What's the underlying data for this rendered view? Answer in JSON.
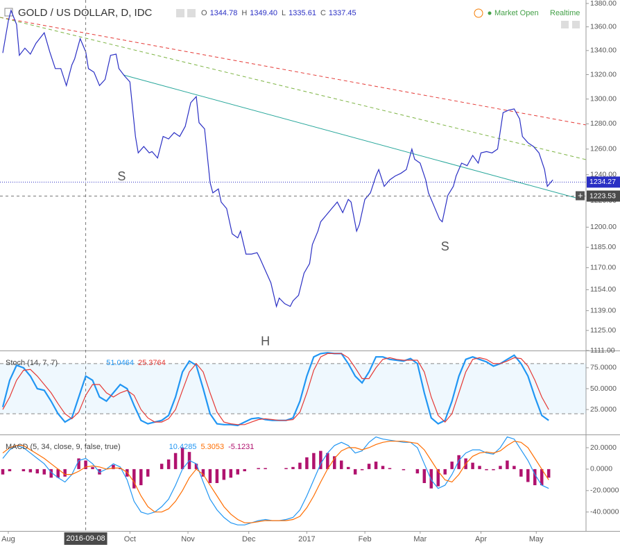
{
  "header": {
    "title": "GOLD / US DOLLAR, D, IDC",
    "ohlc": [
      [
        "O",
        "1344.78"
      ],
      [
        "H",
        "1349.40"
      ],
      [
        "L",
        "1335.61"
      ],
      [
        "C",
        "1337.45"
      ]
    ],
    "status": "Market Open",
    "realtime": "Realtime"
  },
  "chart_data": [
    {
      "type": "line",
      "log": true,
      "xlim": [
        -1,
        211
      ],
      "ylim": [
        1111,
        1380
      ],
      "yticks": [
        {
          "value": 1380,
          "label": "1380.00"
        },
        {
          "value": 1360,
          "label": "1360.00"
        },
        {
          "value": 1340,
          "label": "1340.00"
        },
        {
          "value": 1320,
          "label": "1320.00"
        },
        {
          "value": 1300,
          "label": "1300.00"
        },
        {
          "value": 1280,
          "label": "1280.00"
        },
        {
          "value": 1260,
          "label": "1260.00"
        },
        {
          "value": 1240,
          "label": "1240.00"
        },
        {
          "value": 1220,
          "label": "1220.00"
        },
        {
          "value": 1200,
          "label": "1200.00"
        },
        {
          "value": 1185,
          "label": "1185.00"
        },
        {
          "value": 1170,
          "label": "1170.00"
        },
        {
          "value": 1154,
          "label": "1154.00"
        },
        {
          "value": 1139,
          "label": "1139.00"
        },
        {
          "value": 1125,
          "label": "1125.00"
        },
        {
          "value": 1111,
          "label": "1111.00"
        }
      ],
      "xticks": [
        {
          "value": 2,
          "label": "Aug"
        },
        {
          "value": 46,
          "label": "Oct"
        },
        {
          "value": 67,
          "label": "Nov"
        },
        {
          "value": 89,
          "label": "Dec"
        },
        {
          "value": 110,
          "label": "2017"
        },
        {
          "value": 131,
          "label": "Feb"
        },
        {
          "value": 151,
          "label": "Mar"
        },
        {
          "value": 173,
          "label": "Apr"
        },
        {
          "value": 193,
          "label": "May"
        }
      ],
      "x": [
        0,
        2,
        3,
        5,
        6,
        8,
        10,
        12,
        14,
        15,
        17,
        19,
        21,
        23,
        25,
        26,
        28,
        30,
        31,
        33,
        35,
        37,
        39,
        41,
        42,
        44,
        46,
        48,
        49,
        51,
        53,
        54,
        56,
        58,
        60,
        62,
        64,
        66,
        68,
        70,
        71,
        73,
        75,
        76,
        78,
        79,
        81,
        83,
        85,
        86,
        88,
        90,
        92,
        93,
        95,
        97,
        99,
        100,
        102,
        104,
        105,
        107,
        109,
        111,
        112,
        114,
        115,
        117,
        119,
        121,
        123,
        125,
        126,
        128,
        129,
        131,
        133,
        135,
        136,
        138,
        140,
        142,
        144,
        146,
        148,
        149,
        151,
        153,
        154,
        156,
        158,
        159,
        161,
        163,
        164,
        166,
        168,
        170,
        172,
        173,
        175,
        177,
        179,
        181,
        183,
        185,
        187,
        188,
        190,
        192,
        194,
        196,
        197,
        199
      ],
      "series": [
        {
          "color": "#2a2fc4",
          "values": [
            1338,
            1365,
            1374,
            1362,
            1336,
            1342,
            1337,
            1346,
            1352,
            1355,
            1339,
            1325,
            1325,
            1311,
            1328,
            1333,
            1350,
            1339,
            1325,
            1322,
            1311,
            1316,
            1336,
            1337,
            1325,
            1319,
            1314,
            1270,
            1257,
            1262,
            1257,
            1258,
            1253,
            1270,
            1268,
            1273,
            1270,
            1278,
            1297,
            1302,
            1281,
            1276,
            1234,
            1226,
            1229,
            1219,
            1214,
            1195,
            1192,
            1197,
            1180,
            1180,
            1181,
            1177,
            1168,
            1159,
            1142,
            1148,
            1144,
            1142,
            1146,
            1150,
            1166,
            1173,
            1187,
            1197,
            1204,
            1209,
            1214,
            1219,
            1211,
            1221,
            1219,
            1197,
            1202,
            1221,
            1226,
            1239,
            1244,
            1231,
            1236,
            1239,
            1241,
            1244,
            1260,
            1252,
            1249,
            1236,
            1226,
            1216,
            1206,
            1204,
            1224,
            1231,
            1239,
            1249,
            1247,
            1255,
            1249,
            1257,
            1258,
            1257,
            1260,
            1289,
            1291,
            1292,
            1284,
            1270,
            1265,
            1262,
            1257,
            1244,
            1231,
            1236
          ]
        }
      ],
      "last_price": 1234.27,
      "crosshair": {
        "x": 30,
        "label": "2016-09-08",
        "price": 1223.53
      },
      "annotations": [
        {
          "text": "S",
          "x": 43,
          "y": 1238
        },
        {
          "text": "H",
          "x": 95,
          "y": 1117
        },
        {
          "text": "S",
          "x": 160,
          "y": 1185
        }
      ]
    },
    {
      "type": "line",
      "title": "Stoch (14, 7, 7)",
      "xlim": [
        -1,
        211
      ],
      "ylim": [
        -4,
        94
      ],
      "yticks": [
        {
          "value": 75,
          "label": "75.0000"
        },
        {
          "value": 50,
          "label": "50.0000"
        },
        {
          "value": 25,
          "label": "25.0000"
        }
      ],
      "bands": [
        20,
        80
      ],
      "legend_values": [
        "51.0464",
        "25.3764"
      ],
      "x": [
        0,
        2.5,
        5,
        7.5,
        10,
        12.5,
        15,
        17.5,
        20,
        22.5,
        25,
        27.5,
        30,
        32.5,
        35,
        37.5,
        40,
        42.5,
        45,
        47.5,
        50,
        52.5,
        55,
        57.5,
        60,
        62.5,
        65,
        67.5,
        70,
        72.5,
        75,
        77.5,
        80,
        82.5,
        85,
        87.5,
        90,
        92.5,
        95,
        97.5,
        100,
        102.5,
        105,
        107.5,
        110,
        112.5,
        115,
        117.5,
        120,
        122.5,
        125,
        127.5,
        130,
        132.5,
        135,
        137.5,
        140,
        142.5,
        145,
        147.5,
        150,
        152.5,
        155,
        157.5,
        160,
        162.5,
        165,
        167.5,
        170,
        172.5,
        175,
        177.5,
        180,
        182.5,
        185,
        187.5,
        190,
        192.5,
        195,
        197.5
      ],
      "series": [
        {
          "color": "#2196f3",
          "values": [
            28,
            60,
            78,
            75,
            65,
            50,
            48,
            35,
            20,
            10,
            15,
            40,
            65,
            60,
            40,
            35,
            45,
            55,
            50,
            30,
            12,
            8,
            10,
            12,
            18,
            40,
            70,
            83,
            78,
            50,
            20,
            8,
            7,
            7,
            6,
            10,
            14,
            15,
            13,
            12,
            12,
            12,
            15,
            35,
            65,
            88,
            92,
            93,
            92,
            92,
            80,
            65,
            57,
            70,
            88,
            88,
            85,
            84,
            83,
            86,
            80,
            45,
            15,
            8,
            12,
            35,
            65,
            85,
            88,
            85,
            82,
            77,
            80,
            85,
            90,
            80,
            65,
            40,
            18,
            12
          ]
        },
        {
          "color": "#e53935",
          "values": [
            25,
            40,
            60,
            72,
            73,
            65,
            55,
            45,
            32,
            20,
            14,
            22,
            42,
            55,
            55,
            45,
            40,
            45,
            48,
            42,
            25,
            15,
            10,
            10,
            14,
            25,
            48,
            70,
            80,
            70,
            45,
            22,
            10,
            8,
            7,
            7,
            10,
            13,
            14,
            13,
            12,
            12,
            13,
            22,
            45,
            72,
            88,
            92,
            92,
            92,
            87,
            75,
            62,
            62,
            75,
            85,
            87,
            85,
            84,
            84,
            84,
            70,
            40,
            18,
            10,
            20,
            45,
            70,
            85,
            87,
            85,
            80,
            80,
            83,
            87,
            86,
            77,
            60,
            40,
            25
          ]
        }
      ]
    },
    {
      "type": "line",
      "title": "MACD (5, 34, close, 9, false, true)",
      "xlim": [
        -1,
        211
      ],
      "ylim": [
        -57,
        31
      ],
      "yticks": [
        {
          "value": 20,
          "label": "20.0000"
        },
        {
          "value": 0,
          "label": "0.0000"
        },
        {
          "value": -20,
          "label": "-20.0000"
        },
        {
          "value": -40,
          "label": "-40.0000"
        }
      ],
      "legend_values": [
        "10.4285",
        "5.3053",
        "-5.1231"
      ],
      "x": [
        0,
        2.5,
        5,
        7.5,
        10,
        12.5,
        15,
        17.5,
        20,
        22.5,
        25,
        27.5,
        30,
        32.5,
        35,
        37.5,
        40,
        42.5,
        45,
        47.5,
        50,
        52.5,
        55,
        57.5,
        60,
        62.5,
        65,
        67.5,
        70,
        72.5,
        75,
        77.5,
        80,
        82.5,
        85,
        87.5,
        90,
        92.5,
        95,
        97.5,
        100,
        102.5,
        105,
        107.5,
        110,
        112.5,
        115,
        117.5,
        120,
        122.5,
        125,
        127.5,
        130,
        132.5,
        135,
        137.5,
        140,
        142.5,
        145,
        147.5,
        150,
        152.5,
        155,
        157.5,
        160,
        162.5,
        165,
        167.5,
        170,
        172.5,
        175,
        177.5,
        180,
        182.5,
        185,
        187.5,
        190,
        192.5,
        195,
        197.5
      ],
      "series": [
        {
          "type": "bar",
          "color": "#b0126e",
          "values": [
            -5,
            -2,
            0,
            -2,
            -3,
            -4,
            -5,
            -8,
            -8,
            -7,
            0,
            10,
            8,
            2,
            -5,
            0,
            4,
            1,
            -7,
            -18,
            -15,
            -7,
            0,
            5,
            9,
            15,
            20,
            16,
            5,
            -7,
            -13,
            -13,
            -10,
            -8,
            -5,
            -2,
            0,
            1,
            1,
            0,
            0,
            1,
            2,
            6,
            11,
            15,
            17,
            15,
            12,
            8,
            2,
            -5,
            -1,
            5,
            7,
            3,
            1,
            0,
            -1,
            0,
            -4,
            -13,
            -18,
            -16,
            -5,
            7,
            13,
            10,
            6,
            3,
            -1,
            -1,
            3,
            8,
            3,
            -7,
            -12,
            -15,
            -15,
            -8
          ]
        },
        {
          "color": "#2196f3",
          "values": [
            10,
            18,
            22,
            20,
            15,
            10,
            5,
            -3,
            -8,
            -12,
            -5,
            8,
            10,
            5,
            -3,
            0,
            5,
            2,
            -10,
            -30,
            -40,
            -42,
            -40,
            -35,
            -28,
            -15,
            0,
            8,
            5,
            -12,
            -28,
            -38,
            -45,
            -50,
            -52,
            -52,
            -50,
            -48,
            -47,
            -48,
            -48,
            -47,
            -45,
            -38,
            -25,
            -10,
            5,
            15,
            22,
            25,
            22,
            15,
            17,
            25,
            30,
            28,
            27,
            26,
            25,
            25,
            20,
            5,
            -10,
            -18,
            -15,
            -5,
            8,
            15,
            18,
            18,
            15,
            14,
            20,
            30,
            28,
            18,
            8,
            -5,
            -15,
            -18
          ]
        },
        {
          "color": "#ff6d00",
          "values": [
            15,
            20,
            22,
            22,
            18,
            14,
            10,
            5,
            0,
            -5,
            -5,
            -2,
            2,
            3,
            2,
            0,
            1,
            1,
            -3,
            -12,
            -25,
            -35,
            -40,
            -40,
            -37,
            -30,
            -20,
            -8,
            0,
            -5,
            -15,
            -25,
            -35,
            -42,
            -47,
            -50,
            -50,
            -49,
            -48,
            -48,
            -48,
            -48,
            -47,
            -44,
            -36,
            -25,
            -12,
            0,
            10,
            17,
            20,
            20,
            18,
            20,
            23,
            25,
            26,
            26,
            26,
            25,
            24,
            18,
            8,
            -2,
            -10,
            -12,
            -5,
            5,
            12,
            15,
            16,
            15,
            17,
            22,
            26,
            25,
            20,
            10,
            0,
            -10
          ]
        }
      ]
    }
  ]
}
